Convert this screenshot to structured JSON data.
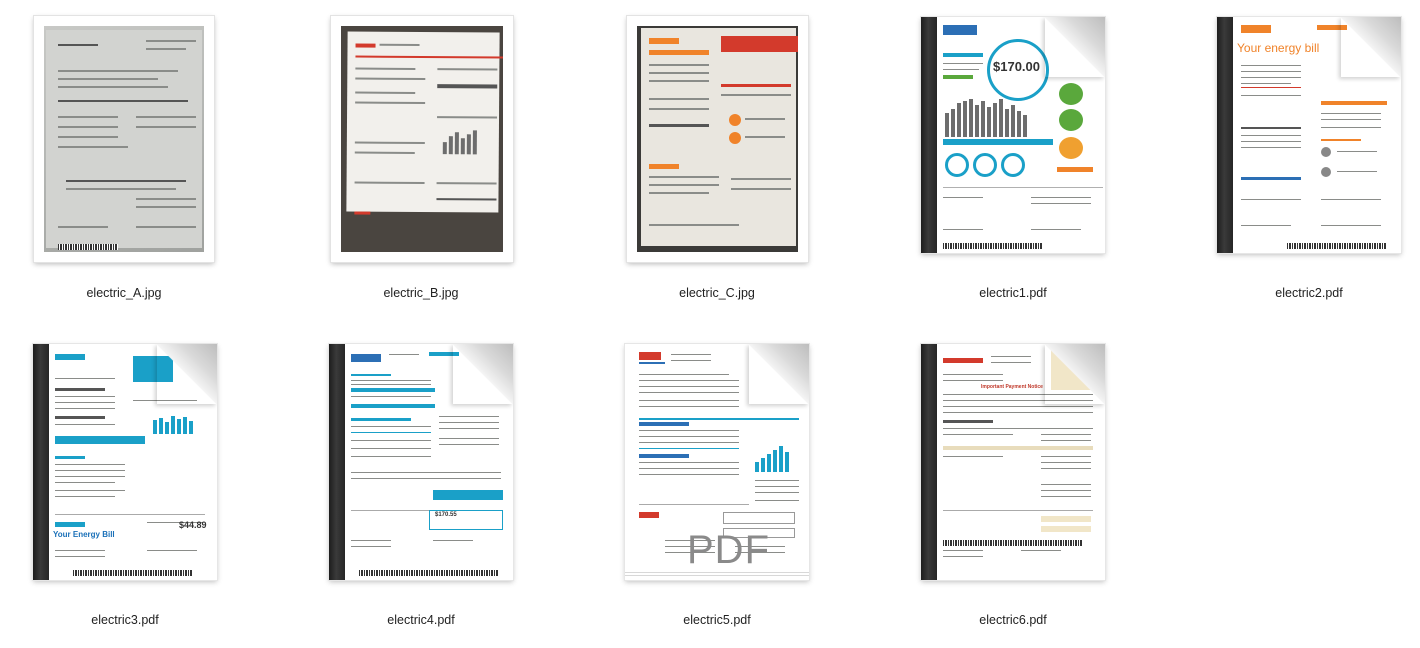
{
  "files": [
    {
      "name": "electric_A.jpg",
      "kind": "jpg-photo"
    },
    {
      "name": "electric_B.jpg",
      "kind": "jpg-photo"
    },
    {
      "name": "electric_C.jpg",
      "kind": "jpg-photo"
    },
    {
      "name": "electric1.pdf",
      "kind": "pdf-document",
      "thumb_amount": "$170.00"
    },
    {
      "name": "electric2.pdf",
      "kind": "pdf-document",
      "thumb_heading": "Your energy bill"
    },
    {
      "name": "electric3.pdf",
      "kind": "pdf-document",
      "thumb_amount": "$44.89",
      "thumb_heading": "Your Energy Bill"
    },
    {
      "name": "electric4.pdf",
      "kind": "pdf-document",
      "thumb_amount": "$170.55"
    },
    {
      "name": "electric5.pdf",
      "kind": "pdf-document",
      "thumb_overlay": "PDF"
    },
    {
      "name": "electric6.pdf",
      "kind": "pdf-document",
      "thumb_heading": "Important Payment Notice"
    }
  ],
  "icons": {
    "pdf_fold": "page-curl-icon",
    "pdf_binding": "spine-icon"
  }
}
